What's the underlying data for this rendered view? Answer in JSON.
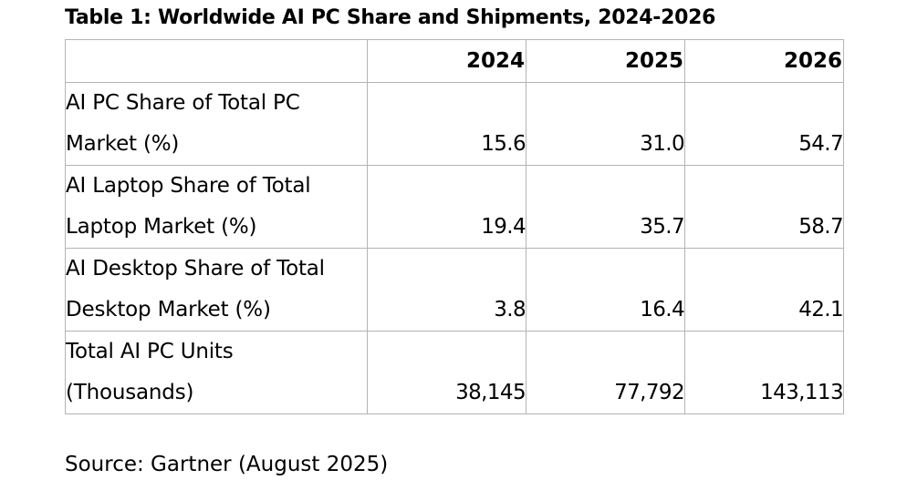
{
  "title": "Table 1: Worldwide AI PC Share and Shipments, 2024-2026",
  "table": {
    "columns": [
      "",
      "2024",
      "2025",
      "2026"
    ],
    "rows": [
      {
        "label": "AI PC Share of Total PC Market (%)",
        "values": [
          "15.6",
          "31.0",
          "54.7"
        ]
      },
      {
        "label": "AI Laptop Share of Total Laptop Market (%)",
        "values": [
          "19.4",
          "35.7",
          "58.7"
        ]
      },
      {
        "label": "AI Desktop Share of Total Desktop Market (%)",
        "values": [
          "3.8",
          "16.4",
          "42.1"
        ]
      },
      {
        "label": "Total AI PC Units (Thousands)",
        "values": [
          "38,145",
          "77,792",
          "143,113"
        ]
      }
    ]
  },
  "source": "Source: Gartner (August 2025)"
}
